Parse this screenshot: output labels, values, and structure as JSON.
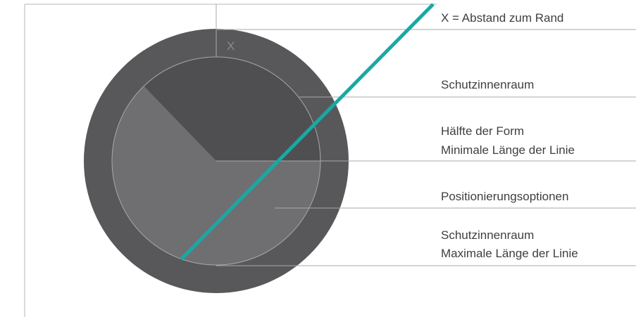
{
  "diagram": {
    "marker_label": "X",
    "labels": [
      {
        "id": "label-distance-edge",
        "lines": [
          "X = Abstand zum Rand"
        ]
      },
      {
        "id": "label-protection-space",
        "lines": [
          "Schutzinnenraum"
        ]
      },
      {
        "id": "label-half-form",
        "lines": [
          "Hälfte der Form",
          "Minimale Länge der Linie"
        ]
      },
      {
        "id": "label-positioning-options",
        "lines": [
          "Positionierungsoptionen"
        ]
      },
      {
        "id": "label-max-length",
        "lines": [
          "Schutzinnenraum",
          "Maximale Länge der Linie"
        ]
      }
    ],
    "colors": {
      "outer_ring": "#58585a",
      "inner_dark": "#4f4f51",
      "sector": "#6f6f72",
      "guide_lines": "#a8a8aa",
      "accent_line": "#17a9a6",
      "text": "#3f3f41"
    }
  }
}
